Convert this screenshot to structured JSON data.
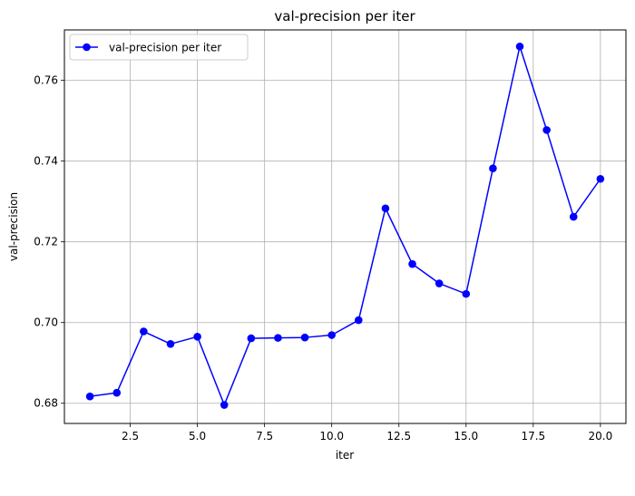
{
  "chart_data": {
    "type": "line",
    "title": "val-precision per iter",
    "xlabel": "iter",
    "ylabel": "val-precision",
    "xlim": [
      0.05,
      20.95
    ],
    "ylim": [
      0.675,
      0.7725
    ],
    "xticks": [
      2.5,
      5.0,
      7.5,
      10.0,
      12.5,
      15.0,
      17.5,
      20.0
    ],
    "xtick_labels": [
      "2.5",
      "5.0",
      "7.5",
      "10.0",
      "12.5",
      "15.0",
      "17.5",
      "20.0"
    ],
    "yticks": [
      0.68,
      0.7,
      0.72,
      0.74,
      0.76
    ],
    "ytick_labels": [
      "0.68",
      "0.70",
      "0.72",
      "0.74",
      "0.76"
    ],
    "grid": true,
    "legend_position": "top-left",
    "series": [
      {
        "name": "val-precision per iter",
        "color": "#0000ff",
        "marker": "circle",
        "x": [
          1,
          2,
          3,
          4,
          5,
          6,
          7,
          8,
          9,
          10,
          11,
          12,
          13,
          14,
          15,
          16,
          17,
          18,
          19,
          20
        ],
        "y": [
          0.6817,
          0.6826,
          0.6978,
          0.6947,
          0.6965,
          0.6796,
          0.6961,
          0.6962,
          0.6963,
          0.6969,
          0.7006,
          0.7283,
          0.7145,
          0.7097,
          0.7071,
          0.7382,
          0.7684,
          0.7477,
          0.7262,
          0.7356
        ]
      }
    ]
  }
}
